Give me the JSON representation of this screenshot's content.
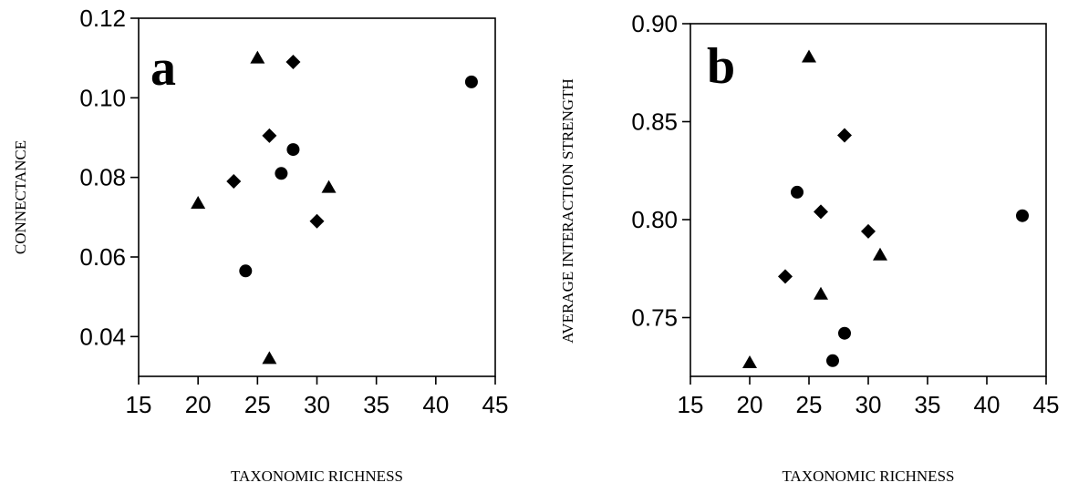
{
  "chart_data": [
    {
      "type": "scatter",
      "panel_label": "a",
      "xlabel": "TAXONOMIC RICHNESS",
      "ylabel": "CONNECTANCE",
      "xlim": [
        15,
        45
      ],
      "ylim": [
        0.03,
        0.12
      ],
      "xticks": [
        "15",
        "20",
        "25",
        "30",
        "35",
        "40",
        "45"
      ],
      "yticks": [
        "0.04",
        "0.06",
        "0.08",
        "0.10",
        "0.12"
      ],
      "grid": false,
      "series": [
        {
          "marker": "triangle",
          "points": [
            [
              20,
              0.0735
            ],
            [
              25,
              0.11
            ],
            [
              26,
              0.0345
            ],
            [
              31,
              0.0775
            ]
          ]
        },
        {
          "marker": "diamond",
          "points": [
            [
              23,
              0.079
            ],
            [
              26,
              0.0905
            ],
            [
              28,
              0.109
            ],
            [
              30,
              0.069
            ]
          ]
        },
        {
          "marker": "circle",
          "points": [
            [
              24,
              0.0565
            ],
            [
              27,
              0.081
            ],
            [
              28,
              0.087
            ],
            [
              43,
              0.104
            ]
          ]
        }
      ]
    },
    {
      "type": "scatter",
      "panel_label": "b",
      "xlabel": "TAXONOMIC RICHNESS",
      "ylabel": "AVERAGE INTERACTION STRENGTH",
      "xlim": [
        15,
        45
      ],
      "ylim": [
        0.72,
        0.9
      ],
      "xticks": [
        "15",
        "20",
        "25",
        "30",
        "35",
        "40",
        "45"
      ],
      "yticks": [
        "0.75",
        "0.80",
        "0.85",
        "0.90"
      ],
      "grid": false,
      "series": [
        {
          "marker": "triangle",
          "points": [
            [
              20,
              0.727
            ],
            [
              25,
              0.883
            ],
            [
              26,
              0.762
            ],
            [
              31,
              0.782
            ]
          ]
        },
        {
          "marker": "diamond",
          "points": [
            [
              23,
              0.771
            ],
            [
              26,
              0.804
            ],
            [
              28,
              0.843
            ],
            [
              30,
              0.794
            ]
          ]
        },
        {
          "marker": "circle",
          "points": [
            [
              24,
              0.814
            ],
            [
              27,
              0.728
            ],
            [
              28,
              0.742
            ],
            [
              43,
              0.802
            ]
          ]
        }
      ]
    }
  ]
}
